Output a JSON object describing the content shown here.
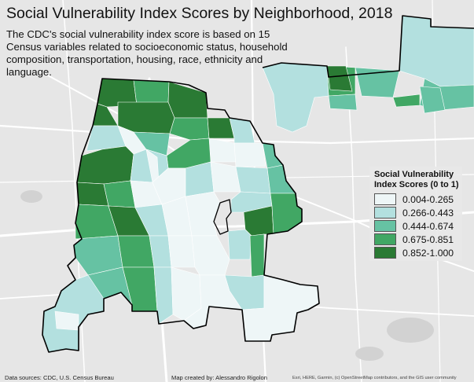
{
  "map": {
    "title": "Social Vulnerability Index Scores by Neighborhood, 2018",
    "subtitle": "The CDC's social vulnerability index score is based on 15 Census variables related to socioeconomic status, household composition, transportation, housing, race, ethnicity and language."
  },
  "legend": {
    "title": "Social Vulnerability Index Scores (0 to 1)",
    "classes": [
      {
        "label": "0.004-0.265",
        "color": "#eef6f7"
      },
      {
        "label": "0.266-0.443",
        "color": "#b3e0df"
      },
      {
        "label": "0.444-0.674",
        "color": "#66c2a3"
      },
      {
        "label": "0.675-0.851",
        "color": "#41a764"
      },
      {
        "label": "0.852-1.000",
        "color": "#2a7a34"
      }
    ]
  },
  "credits": {
    "data_sources": "Data sources: CDC, U.S. Census Bureau",
    "author": "Map created by: Alessandro Rigolon",
    "basemap": "Esri, HERE, Garmin, (c) OpenStreetMap contributors, and the GIS user community"
  },
  "colors": {
    "background": "#e6e6e6",
    "roads": "#ffffff",
    "boundary": "#000000"
  }
}
